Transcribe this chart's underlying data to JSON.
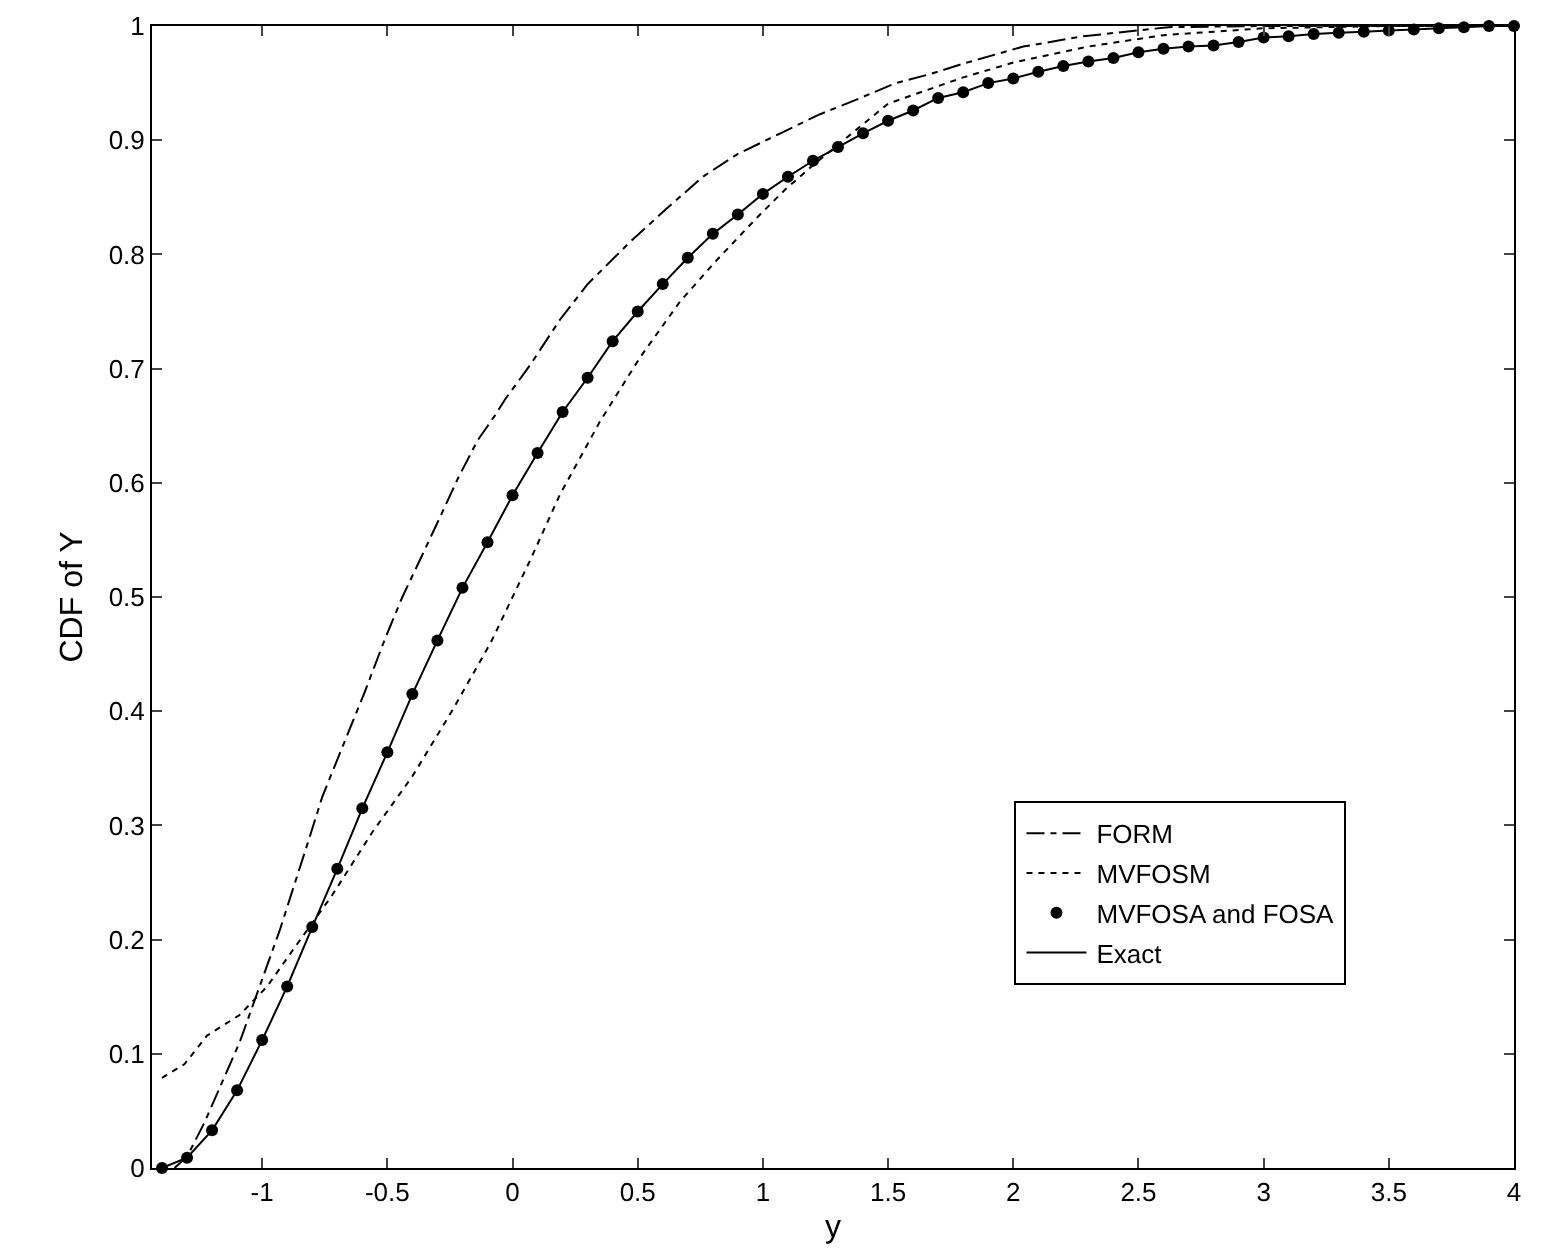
{
  "chart_data": {
    "type": "line",
    "xlabel": "y",
    "ylabel": "CDF of Y",
    "xlim": [
      -1.44,
      4
    ],
    "ylim": [
      0,
      1
    ],
    "xticks": [
      -1,
      -0.5,
      0,
      0.5,
      1,
      1.5,
      2,
      2.5,
      3,
      3.5,
      4
    ],
    "yticks": [
      0,
      0.1,
      0.2,
      0.3,
      0.4,
      0.5,
      0.6,
      0.7,
      0.8,
      0.9,
      1
    ],
    "grid": false,
    "legend": "bottom right",
    "series": [
      {
        "name": "FORM",
        "color": "#000000",
        "line_style": "dashdot",
        "marker": "none",
        "x": [
          -1.35,
          -1.3,
          -1.23,
          -1.09,
          -1.02,
          -0.93,
          -0.81,
          -0.76,
          -0.64,
          -0.59,
          -0.51,
          -0.44,
          -0.36,
          -0.3,
          -0.22,
          -0.14,
          -0.07,
          -0.03,
          0.07,
          0.19,
          0.3,
          0.47,
          0.61,
          0.76,
          0.9,
          1.07,
          1.22,
          1.39,
          1.53,
          1.67,
          1.8,
          2.04,
          2.28,
          2.62,
          3,
          3.5,
          4
        ],
        "values": [
          0,
          0.01,
          0.04,
          0.11,
          0.153,
          0.208,
          0.29,
          0.325,
          0.39,
          0.417,
          0.463,
          0.5,
          0.537,
          0.565,
          0.603,
          0.637,
          0.659,
          0.673,
          0.703,
          0.743,
          0.774,
          0.811,
          0.839,
          0.868,
          0.888,
          0.906,
          0.922,
          0.937,
          0.95,
          0.958,
          0.967,
          0.982,
          0.991,
          0.999,
          1,
          1,
          1
        ]
      },
      {
        "name": "MVFOSM",
        "color": "#000000",
        "line_style": "dotted",
        "marker": "none",
        "x": [
          -1.4,
          -1.31,
          -1.22,
          -1.09,
          -0.98,
          -0.88,
          -0.72,
          -0.56,
          -0.4,
          -0.245,
          -0.087,
          0.07,
          0.19,
          0.35,
          0.51,
          0.67,
          0.82,
          0.98,
          1.09,
          1.2,
          1.35,
          1.5,
          1.8,
          2,
          2.3,
          2.6,
          3,
          3.5,
          4
        ],
        "values": [
          0.079,
          0.091,
          0.116,
          0.134,
          0.159,
          0.19,
          0.239,
          0.294,
          0.343,
          0.399,
          0.46,
          0.532,
          0.59,
          0.654,
          0.71,
          0.759,
          0.796,
          0.833,
          0.857,
          0.878,
          0.905,
          0.932,
          0.955,
          0.968,
          0.982,
          0.992,
          0.998,
          1,
          1
        ]
      },
      {
        "name": "MVFOSA and FOSA",
        "color": "#000000",
        "type": "scatter",
        "marker": "circle",
        "x": [
          -1.4,
          -1.3,
          -1.2,
          -1.1,
          -1,
          -0.9,
          -0.8,
          -0.7,
          -0.6,
          -0.5,
          -0.4,
          -0.3,
          -0.2,
          -0.1,
          0,
          0.1,
          0.2,
          0.3,
          0.4,
          0.5,
          0.6,
          0.7,
          0.8,
          0.9,
          1,
          1.1,
          1.2,
          1.3,
          1.4,
          1.5,
          1.6,
          1.7,
          1.8,
          1.9,
          2,
          2.1,
          2.2,
          2.3,
          2.4,
          2.5,
          2.6,
          2.7,
          2.8,
          2.9,
          3,
          3.1,
          3.2,
          3.3,
          3.4,
          3.5,
          3.6,
          3.7,
          3.8,
          3.9,
          4
        ],
        "values": [
          0,
          0.009,
          0.033,
          0.068,
          0.112,
          0.159,
          0.211,
          0.262,
          0.315,
          0.364,
          0.415,
          0.462,
          0.508,
          0.548,
          0.589,
          0.626,
          0.662,
          0.692,
          0.724,
          0.75,
          0.774,
          0.797,
          0.818,
          0.835,
          0.853,
          0.868,
          0.882,
          0.894,
          0.906,
          0.917,
          0.926,
          0.937,
          0.942,
          0.95,
          0.954,
          0.96,
          0.965,
          0.969,
          0.972,
          0.977,
          0.98,
          0.982,
          0.983,
          0.986,
          0.99,
          0.991,
          0.993,
          0.994,
          0.995,
          0.996,
          0.997,
          0.998,
          0.999,
          1,
          1
        ]
      },
      {
        "name": "Exact",
        "color": "#000000",
        "line_style": "solid",
        "marker": "none",
        "x": [
          -1.4,
          -1.3,
          -1.2,
          -1.1,
          -1,
          -0.9,
          -0.8,
          -0.7,
          -0.6,
          -0.5,
          -0.4,
          -0.3,
          -0.2,
          -0.1,
          0,
          0.1,
          0.2,
          0.3,
          0.4,
          0.5,
          0.6,
          0.7,
          0.8,
          0.9,
          1,
          1.1,
          1.2,
          1.3,
          1.4,
          1.5,
          1.6,
          1.7,
          1.8,
          1.9,
          2,
          2.1,
          2.2,
          2.3,
          2.4,
          2.5,
          2.6,
          2.7,
          2.8,
          2.9,
          3,
          3.1,
          3.2,
          3.3,
          3.4,
          3.5,
          3.6,
          3.7,
          3.8,
          3.9,
          4
        ],
        "values": [
          0,
          0.009,
          0.033,
          0.068,
          0.112,
          0.159,
          0.211,
          0.262,
          0.315,
          0.364,
          0.415,
          0.462,
          0.508,
          0.548,
          0.589,
          0.626,
          0.662,
          0.692,
          0.724,
          0.75,
          0.774,
          0.797,
          0.818,
          0.835,
          0.853,
          0.868,
          0.882,
          0.894,
          0.906,
          0.917,
          0.926,
          0.937,
          0.942,
          0.95,
          0.954,
          0.96,
          0.965,
          0.969,
          0.972,
          0.977,
          0.98,
          0.982,
          0.983,
          0.986,
          0.99,
          0.991,
          0.993,
          0.994,
          0.995,
          0.996,
          0.997,
          0.998,
          0.999,
          1,
          1
        ]
      }
    ]
  }
}
